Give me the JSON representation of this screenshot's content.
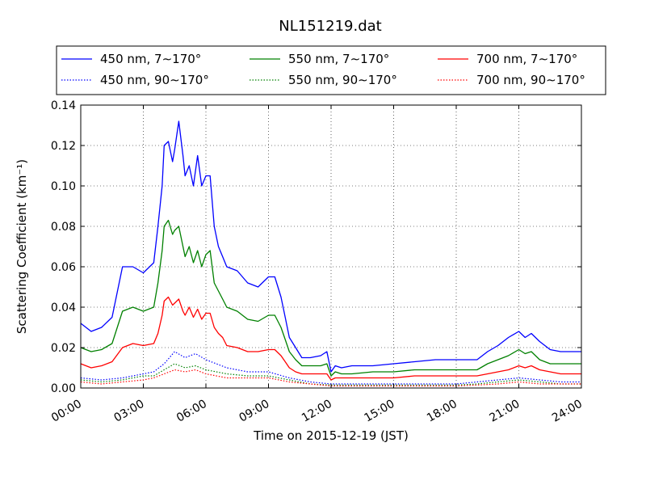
{
  "chart_data": {
    "type": "line",
    "title": "NL151219.dat",
    "xlabel": "Time on 2015-12-19 (JST)",
    "ylabel": "Scattering Coefficient (km⁻¹)",
    "xlim": [
      0,
      24
    ],
    "ylim": [
      0,
      0.14
    ],
    "xticks": [
      "00:00",
      "03:00",
      "06:00",
      "09:00",
      "12:00",
      "15:00",
      "18:00",
      "21:00",
      "24:00"
    ],
    "xtick_values": [
      0,
      3,
      6,
      9,
      12,
      15,
      18,
      21,
      24
    ],
    "yticks": [
      "0.00",
      "0.02",
      "0.04",
      "0.06",
      "0.08",
      "0.10",
      "0.12",
      "0.14"
    ],
    "ytick_values": [
      0,
      0.02,
      0.04,
      0.06,
      0.08,
      0.1,
      0.12,
      0.14
    ],
    "grid": true,
    "legend_position": "top, above plot",
    "x_unit": "hours",
    "series": [
      {
        "name": "450 nm, 7∼170°",
        "color": "#0000ff",
        "style": "solid",
        "x": [
          0,
          0.5,
          1,
          1.5,
          2,
          2.5,
          3,
          3.5,
          3.7,
          3.9,
          4.0,
          4.2,
          4.4,
          4.5,
          4.7,
          4.9,
          5.0,
          5.2,
          5.4,
          5.6,
          5.8,
          6.0,
          6.2,
          6.4,
          6.6,
          6.8,
          7.0,
          7.5,
          8.0,
          8.5,
          9.0,
          9.3,
          9.6,
          9.8,
          10.0,
          10.3,
          10.6,
          11.0,
          11.5,
          11.8,
          12.0,
          12.2,
          12.5,
          13,
          14,
          15,
          16,
          17,
          18,
          18.5,
          19,
          19.5,
          20,
          20.5,
          21,
          21.3,
          21.6,
          22,
          22.5,
          23,
          24
        ],
        "values": [
          0.032,
          0.028,
          0.03,
          0.035,
          0.06,
          0.06,
          0.057,
          0.062,
          0.08,
          0.1,
          0.12,
          0.122,
          0.112,
          0.118,
          0.132,
          0.115,
          0.105,
          0.11,
          0.1,
          0.115,
          0.1,
          0.105,
          0.105,
          0.08,
          0.07,
          0.065,
          0.06,
          0.058,
          0.052,
          0.05,
          0.055,
          0.055,
          0.045,
          0.035,
          0.025,
          0.02,
          0.015,
          0.015,
          0.016,
          0.018,
          0.008,
          0.011,
          0.01,
          0.011,
          0.011,
          0.012,
          0.013,
          0.014,
          0.014,
          0.014,
          0.014,
          0.018,
          0.021,
          0.025,
          0.028,
          0.025,
          0.027,
          0.023,
          0.019,
          0.018,
          0.018
        ]
      },
      {
        "name": "550 nm, 7∼170°",
        "color": "#008000",
        "style": "solid",
        "x": [
          0,
          0.5,
          1,
          1.5,
          2,
          2.5,
          3,
          3.5,
          3.7,
          3.9,
          4.0,
          4.2,
          4.4,
          4.5,
          4.7,
          4.9,
          5.0,
          5.2,
          5.4,
          5.6,
          5.8,
          6.0,
          6.2,
          6.4,
          6.6,
          6.8,
          7.0,
          7.5,
          8.0,
          8.5,
          9.0,
          9.3,
          9.6,
          9.8,
          10.0,
          10.3,
          10.6,
          11.0,
          11.5,
          11.8,
          12.0,
          12.2,
          12.5,
          13,
          14,
          15,
          16,
          17,
          18,
          18.5,
          19,
          19.5,
          20,
          20.5,
          21,
          21.3,
          21.6,
          22,
          22.5,
          23,
          24
        ],
        "values": [
          0.02,
          0.018,
          0.019,
          0.022,
          0.038,
          0.04,
          0.038,
          0.04,
          0.052,
          0.068,
          0.08,
          0.083,
          0.076,
          0.078,
          0.08,
          0.07,
          0.065,
          0.07,
          0.062,
          0.068,
          0.06,
          0.066,
          0.068,
          0.052,
          0.048,
          0.044,
          0.04,
          0.038,
          0.034,
          0.033,
          0.036,
          0.036,
          0.03,
          0.024,
          0.018,
          0.014,
          0.011,
          0.011,
          0.011,
          0.012,
          0.006,
          0.008,
          0.007,
          0.007,
          0.008,
          0.008,
          0.009,
          0.009,
          0.009,
          0.009,
          0.009,
          0.012,
          0.014,
          0.016,
          0.019,
          0.017,
          0.018,
          0.014,
          0.012,
          0.012,
          0.012
        ]
      },
      {
        "name": "700 nm, 7∼170°",
        "color": "#ff0000",
        "style": "solid",
        "x": [
          0,
          0.5,
          1,
          1.5,
          2,
          2.5,
          3,
          3.5,
          3.7,
          3.9,
          4.0,
          4.2,
          4.4,
          4.5,
          4.7,
          4.9,
          5.0,
          5.2,
          5.4,
          5.6,
          5.8,
          6.0,
          6.2,
          6.4,
          6.6,
          6.8,
          7.0,
          7.5,
          8.0,
          8.5,
          9.0,
          9.3,
          9.6,
          9.8,
          10.0,
          10.3,
          10.6,
          11.0,
          11.5,
          11.8,
          12.0,
          12.2,
          12.5,
          13,
          14,
          15,
          16,
          17,
          18,
          18.5,
          19,
          19.5,
          20,
          20.5,
          21,
          21.3,
          21.6,
          22,
          22.5,
          23,
          24
        ],
        "values": [
          0.012,
          0.01,
          0.011,
          0.013,
          0.02,
          0.022,
          0.021,
          0.022,
          0.027,
          0.036,
          0.043,
          0.045,
          0.041,
          0.042,
          0.044,
          0.038,
          0.036,
          0.04,
          0.035,
          0.039,
          0.034,
          0.037,
          0.037,
          0.03,
          0.027,
          0.025,
          0.021,
          0.02,
          0.018,
          0.018,
          0.019,
          0.019,
          0.016,
          0.013,
          0.01,
          0.008,
          0.007,
          0.007,
          0.007,
          0.007,
          0.004,
          0.005,
          0.005,
          0.005,
          0.005,
          0.005,
          0.006,
          0.006,
          0.006,
          0.006,
          0.006,
          0.007,
          0.008,
          0.009,
          0.011,
          0.01,
          0.011,
          0.009,
          0.008,
          0.007,
          0.007
        ]
      },
      {
        "name": "450 nm, 90∼170°",
        "color": "#0000ff",
        "style": "dotted",
        "x": [
          0,
          1,
          2,
          3,
          3.5,
          4,
          4.5,
          5,
          5.5,
          6,
          6.5,
          7,
          8,
          9,
          10,
          11,
          12,
          15,
          18,
          19,
          20,
          21,
          22,
          23,
          24
        ],
        "values": [
          0.005,
          0.004,
          0.005,
          0.007,
          0.008,
          0.012,
          0.018,
          0.015,
          0.017,
          0.014,
          0.012,
          0.01,
          0.008,
          0.008,
          0.005,
          0.003,
          0.002,
          0.002,
          0.002,
          0.003,
          0.004,
          0.005,
          0.004,
          0.003,
          0.003
        ]
      },
      {
        "name": "550 nm, 90∼170°",
        "color": "#008000",
        "style": "dotted",
        "x": [
          0,
          1,
          2,
          3,
          3.5,
          4,
          4.5,
          5,
          5.5,
          6,
          6.5,
          7,
          8,
          9,
          10,
          11,
          12,
          15,
          18,
          19,
          20,
          21,
          22,
          23,
          24
        ],
        "values": [
          0.004,
          0.003,
          0.004,
          0.006,
          0.006,
          0.009,
          0.012,
          0.01,
          0.011,
          0.009,
          0.008,
          0.007,
          0.006,
          0.006,
          0.004,
          0.002,
          0.0015,
          0.0015,
          0.0015,
          0.002,
          0.003,
          0.004,
          0.003,
          0.002,
          0.002
        ]
      },
      {
        "name": "700 nm, 90∼170°",
        "color": "#ff0000",
        "style": "dotted",
        "x": [
          0,
          1,
          2,
          3,
          3.5,
          4,
          4.5,
          5,
          5.5,
          6,
          6.5,
          7,
          8,
          9,
          10,
          11,
          12,
          15,
          18,
          19,
          20,
          21,
          22,
          23,
          24
        ],
        "values": [
          0.003,
          0.002,
          0.003,
          0.004,
          0.005,
          0.007,
          0.009,
          0.008,
          0.009,
          0.007,
          0.006,
          0.005,
          0.005,
          0.005,
          0.003,
          0.002,
          0.001,
          0.001,
          0.001,
          0.0015,
          0.002,
          0.003,
          0.002,
          0.002,
          0.002
        ]
      }
    ]
  }
}
